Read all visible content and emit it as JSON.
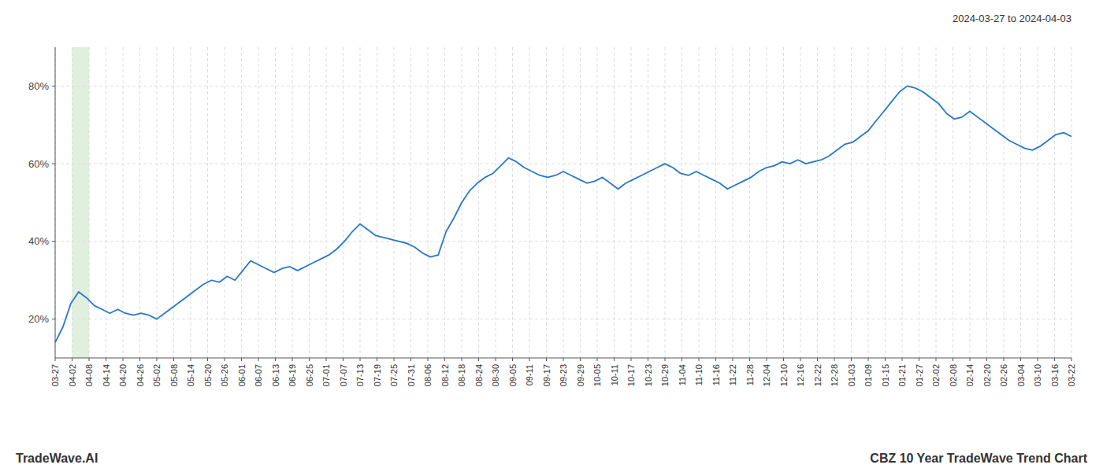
{
  "chart_data": {
    "type": "line",
    "title": "CBZ 10 Year TradeWave Trend Chart",
    "subtitle": "2024-03-27 to 2024-04-03",
    "annotation": "TradeWave.AI",
    "color": "#2878c8",
    "grid": true,
    "xlim": [
      0,
      60
    ],
    "xticks": [
      {
        "value": 0,
        "label": "03-27"
      },
      {
        "value": 1,
        "label": "04-02"
      },
      {
        "value": 2,
        "label": "04-08"
      },
      {
        "value": 3,
        "label": "04-14"
      },
      {
        "value": 4,
        "label": "04-20"
      },
      {
        "value": 5,
        "label": "04-26"
      },
      {
        "value": 6,
        "label": "05-02"
      },
      {
        "value": 7,
        "label": "05-08"
      },
      {
        "value": 8,
        "label": "05-14"
      },
      {
        "value": 9,
        "label": "05-20"
      },
      {
        "value": 10,
        "label": "05-26"
      },
      {
        "value": 11,
        "label": "06-01"
      },
      {
        "value": 12,
        "label": "06-07"
      },
      {
        "value": 13,
        "label": "06-13"
      },
      {
        "value": 14,
        "label": "06-19"
      },
      {
        "value": 15,
        "label": "06-25"
      },
      {
        "value": 16,
        "label": "07-01"
      },
      {
        "value": 17,
        "label": "07-07"
      },
      {
        "value": 18,
        "label": "07-13"
      },
      {
        "value": 19,
        "label": "07-19"
      },
      {
        "value": 20,
        "label": "07-25"
      },
      {
        "value": 21,
        "label": "07-31"
      },
      {
        "value": 22,
        "label": "08-06"
      },
      {
        "value": 23,
        "label": "08-12"
      },
      {
        "value": 24,
        "label": "08-18"
      },
      {
        "value": 25,
        "label": "08-24"
      },
      {
        "value": 26,
        "label": "08-30"
      },
      {
        "value": 27,
        "label": "09-05"
      },
      {
        "value": 28,
        "label": "09-11"
      },
      {
        "value": 29,
        "label": "09-17"
      },
      {
        "value": 30,
        "label": "09-23"
      },
      {
        "value": 31,
        "label": "09-29"
      },
      {
        "value": 32,
        "label": "10-05"
      },
      {
        "value": 33,
        "label": "10-11"
      },
      {
        "value": 34,
        "label": "10-17"
      },
      {
        "value": 35,
        "label": "10-23"
      },
      {
        "value": 36,
        "label": "10-29"
      },
      {
        "value": 37,
        "label": "11-04"
      },
      {
        "value": 38,
        "label": "11-10"
      },
      {
        "value": 39,
        "label": "11-16"
      },
      {
        "value": 40,
        "label": "11-22"
      },
      {
        "value": 41,
        "label": "11-28"
      },
      {
        "value": 42,
        "label": "12-04"
      },
      {
        "value": 43,
        "label": "12-10"
      },
      {
        "value": 44,
        "label": "12-16"
      },
      {
        "value": 45,
        "label": "12-22"
      },
      {
        "value": 46,
        "label": "12-28"
      },
      {
        "value": 47,
        "label": "01-03"
      },
      {
        "value": 48,
        "label": "01-09"
      },
      {
        "value": 49,
        "label": "01-15"
      },
      {
        "value": 50,
        "label": "01-21"
      },
      {
        "value": 51,
        "label": "01-27"
      },
      {
        "value": 52,
        "label": "02-02"
      },
      {
        "value": 53,
        "label": "02-08"
      },
      {
        "value": 54,
        "label": "02-14"
      },
      {
        "value": 55,
        "label": "02-20"
      },
      {
        "value": 56,
        "label": "02-26"
      },
      {
        "value": 57,
        "label": "03-04"
      },
      {
        "value": 58,
        "label": "03-10"
      },
      {
        "value": 59,
        "label": "03-16"
      },
      {
        "value": 60,
        "label": "03-22"
      }
    ],
    "ylim": [
      10,
      90
    ],
    "yticks": [
      {
        "value": 20,
        "label": "20%"
      },
      {
        "value": 40,
        "label": "40%"
      },
      {
        "value": 60,
        "label": "60%"
      },
      {
        "value": 80,
        "label": "80%"
      }
    ],
    "highlight": {
      "x_start": 1,
      "x_end": 2,
      "color": "#d4e8d0"
    },
    "values": [
      14.0,
      18.0,
      24.0,
      27.0,
      25.5,
      23.5,
      22.5,
      21.5,
      22.5,
      21.5,
      21.0,
      21.5,
      21.0,
      20.0,
      21.5,
      23.0,
      24.5,
      26.0,
      27.5,
      29.0,
      30.0,
      29.5,
      31.0,
      30.0,
      32.5,
      35.0,
      34.0,
      33.0,
      32.0,
      33.0,
      33.5,
      32.5,
      33.5,
      34.5,
      35.5,
      36.5,
      38.0,
      40.0,
      42.5,
      44.5,
      43.0,
      41.5,
      41.0,
      40.5,
      40.0,
      39.5,
      38.5,
      37.0,
      36.0,
      36.5,
      42.5,
      46.0,
      50.0,
      53.0,
      55.0,
      56.5,
      57.5,
      59.5,
      61.5,
      60.5,
      59.0,
      58.0,
      57.0,
      56.5,
      57.0,
      58.0,
      57.0,
      56.0,
      55.0,
      55.5,
      56.5,
      55.0,
      53.5,
      55.0,
      56.0,
      57.0,
      58.0,
      59.0,
      60.0,
      59.0,
      57.5,
      57.0,
      58.0,
      57.0,
      56.0,
      55.0,
      53.5,
      54.5,
      55.5,
      56.5,
      58.0,
      59.0,
      59.5,
      60.5,
      60.0,
      61.0,
      60.0,
      60.5,
      61.0,
      62.0,
      63.5,
      65.0,
      65.5,
      67.0,
      68.5,
      71.0,
      73.5,
      76.0,
      78.5,
      80.0,
      79.5,
      78.5,
      77.0,
      75.5,
      73.0,
      71.5,
      72.0,
      73.5,
      72.0,
      70.5,
      69.0,
      67.5,
      66.0,
      65.0,
      64.0,
      63.5,
      64.5,
      66.0,
      67.5,
      68.0,
      67.0
    ]
  }
}
